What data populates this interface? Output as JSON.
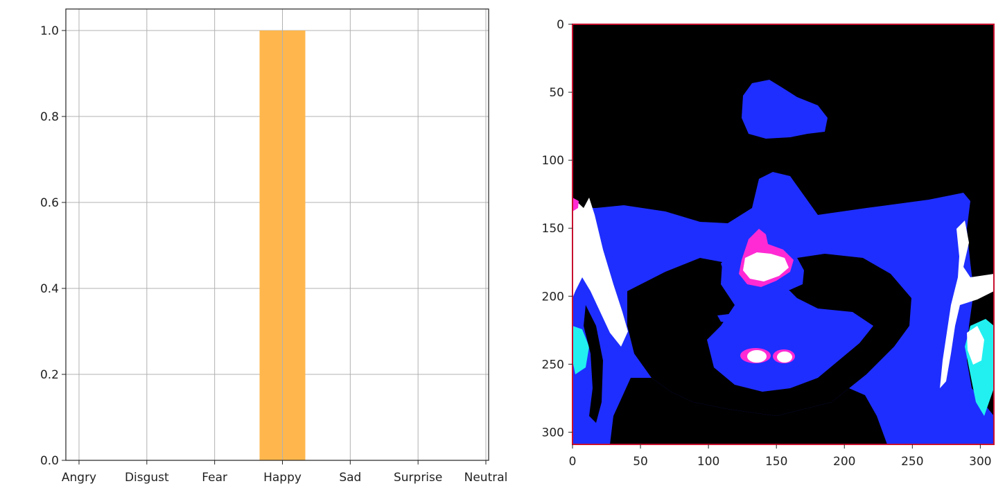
{
  "chart_data": [
    {
      "type": "bar",
      "categories": [
        "Angry",
        "Disgust",
        "Fear",
        "Happy",
        "Sad",
        "Surprise",
        "Neutral"
      ],
      "values": [
        0,
        0,
        0,
        1.0,
        0,
        0,
        0
      ],
      "ylim": [
        0,
        1.05
      ],
      "yticks": [
        "0.0",
        "0.2",
        "0.4",
        "0.6",
        "0.8",
        "1.0"
      ],
      "grid": true,
      "bar_color": "#ffb74d",
      "title": "",
      "xlabel": "",
      "ylabel": ""
    },
    {
      "type": "image",
      "xlim": [
        0,
        310
      ],
      "ylim": [
        310,
        0
      ],
      "xticks": [
        "0",
        "50",
        "100",
        "150",
        "200",
        "250",
        "300"
      ],
      "yticks": [
        "0",
        "50",
        "100",
        "150",
        "200",
        "250",
        "300"
      ],
      "frame_color": "#c8102e",
      "colors": {
        "background": "#000000",
        "skin": "#1e2eff",
        "highlight": "#ffffff",
        "magenta": "#ff2ad4",
        "cyan": "#22f0f0"
      }
    }
  ]
}
